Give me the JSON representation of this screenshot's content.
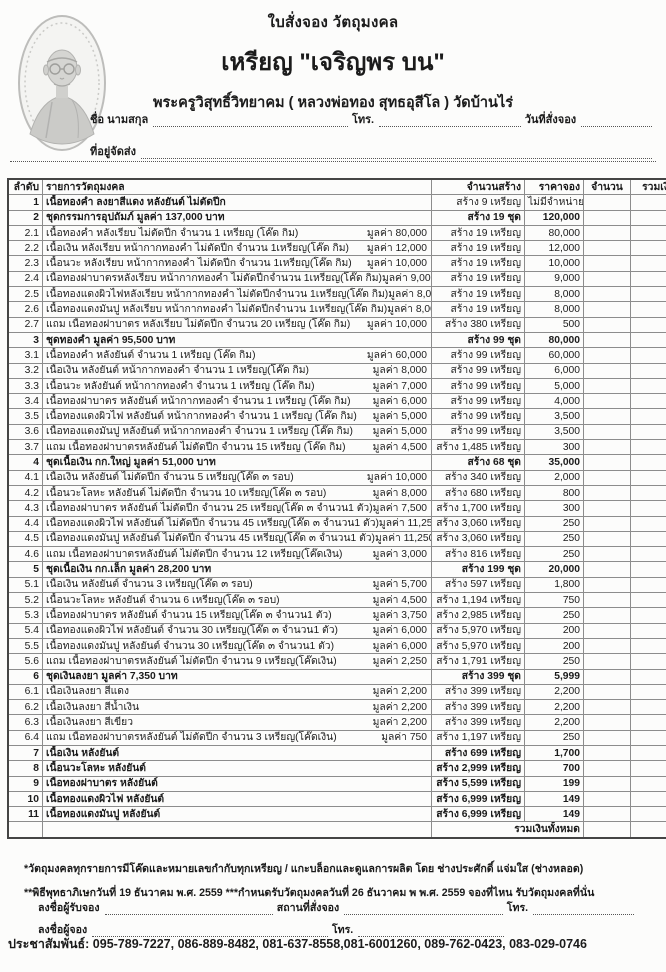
{
  "header": {
    "doc_title": "ใบสั่งจอง วัตถุมงคล",
    "coin_title": "เหรียญ \"เจริญพร บน\"",
    "subtitle": "พระครูวิสุทธิ์วิทยาคม ( หลวงพ่อทอง สุทธอุสีโล ) วัดบ้านไร่",
    "medallion": "monk-portrait-medallion"
  },
  "form": {
    "name_label": "ชื่อ นามสกุล",
    "phone_label": "โทร.",
    "date_label": "วันที่สั่งจอง",
    "address_label": "ที่อยู่จัดส่ง"
  },
  "table": {
    "headers": {
      "no": "ลำดับ",
      "item": "รายการวัตถุมงคล",
      "made": "จำนวนสร้าง",
      "price": "ราคาจอง",
      "qty": "จำนวน",
      "total": "รวมเงิน"
    },
    "total_label": "รวมเงินทั้งหมด",
    "rows": [
      {
        "n": "1",
        "t": "เนื้อทองคำ ลงยาสีแดง หลังยันต์ ไม่ตัดปีก",
        "v": "",
        "m": "สร้าง 9 เหรียญ",
        "p": "ไม่มีจำหน่าย",
        "b": 1
      },
      {
        "n": "2",
        "t": "ชุดกรรมการอุปถัมภ์ มูลค่า 137,000 บาท",
        "v": "",
        "m": "สร้าง 19 ชุด",
        "p": "120,000",
        "b": 2
      },
      {
        "n": "2.1",
        "t": "เนื้อทองคำ หลังเรียบ ไม่ตัดปีก จำนวน 1 เหรียญ (โค๊ด กิม)",
        "v": "มูลค่า 80,000",
        "m": "สร้าง 19 เหรียญ",
        "p": "80,000",
        "b": 0
      },
      {
        "n": "2.2",
        "t": "เนื้อเงิน หลังเรียบ หน้ากากทองคำ ไม่ตัดปีก จำนวน 1เหรียญ(โค๊ด กิม)",
        "v": "มูลค่า 12,000",
        "m": "สร้าง 19 เหรียญ",
        "p": "12,000",
        "b": 0
      },
      {
        "n": "2.3",
        "t": "เนื้อนวะ หลังเรียบ หน้ากากทองคำ ไม่ตัดปีก จำนวน 1เหรียญ(โค๊ด กิม)",
        "v": "มูลค่า 10,000",
        "m": "สร้าง 19 เหรียญ",
        "p": "10,000",
        "b": 0
      },
      {
        "n": "2.4",
        "t": "เนื้อทองฝาบาตรหลังเรียบ หน้ากากทองคำ ไม่ตัดปีกจำนวน 1เหรียญ(โค๊ด กิม)",
        "v": "มูลค่า 9,000",
        "m": "สร้าง 19 เหรียญ",
        "p": "9,000",
        "b": 0
      },
      {
        "n": "2.5",
        "t": "เนื้อทองแดงผิวไฟหลังเรียบ หน้ากากทองคำ ไม่ตัดปีกจำนวน 1เหรียญ(โค๊ด กิม)",
        "v": "มูลค่า 8,000",
        "m": "สร้าง 19 เหรียญ",
        "p": "8,000",
        "b": 0
      },
      {
        "n": "2.6",
        "t": "เนื้อทองแดงมันปู หลังเรียบ หน้ากากทองคำ ไม่ตัดปีกจำนวน 1เหรียญ(โค๊ด กิม)",
        "v": "มูลค่า 8,000",
        "m": "สร้าง 19 เหรียญ",
        "p": "8,000",
        "b": 0
      },
      {
        "n": "2.7",
        "t": "แถม เนื้อทองฝาบาตร หลังเรียบ ไม่ตัดปีก จำนวน 20 เหรียญ (โค๊ด กิม)",
        "v": "มูลค่า 10,000",
        "m": "สร้าง 380 เหรียญ",
        "p": "500",
        "b": 0
      },
      {
        "n": "3",
        "t": "ชุดทองคำ มูลค่า 95,500 บาท",
        "v": "",
        "m": "สร้าง 99 ชุด",
        "p": "80,000",
        "b": 2
      },
      {
        "n": "3.1",
        "t": "เนื้อทองคำ หลังยันต์ จำนวน 1 เหรียญ (โค๊ด กิม)",
        "v": "มูลค่า 60,000",
        "m": "สร้าง 99 เหรียญ",
        "p": "60,000",
        "b": 0
      },
      {
        "n": "3.2",
        "t": "เนื้อเงิน หลังยันต์ หน้ากากทองคำ จำนวน 1 เหรียญ(โค๊ด กิม)",
        "v": "มูลค่า 8,000",
        "m": "สร้าง 99 เหรียญ",
        "p": "6,000",
        "b": 0
      },
      {
        "n": "3.3",
        "t": "เนื้อนวะ หลังยันต์ หน้ากากทองคำ จำนวน 1 เหรียญ (โค๊ด กิม)",
        "v": "มูลค่า 7,000",
        "m": "สร้าง 99 เหรียญ",
        "p": "5,000",
        "b": 0
      },
      {
        "n": "3.4",
        "t": "เนื้อทองฝาบาตร หลังยันต์ หน้ากากทองคำ จำนวน 1 เหรียญ (โค๊ด กิม)",
        "v": "มูลค่า 6,000",
        "m": "สร้าง 99 เหรียญ",
        "p": "4,000",
        "b": 0
      },
      {
        "n": "3.5",
        "t": "เนื้อทองแดงผิวไฟ หลังยันต์ หน้ากากทองคำ จำนวน 1 เหรียญ (โค๊ด กิม)",
        "v": "มูลค่า 5,000",
        "m": "สร้าง 99 เหรียญ",
        "p": "3,500",
        "b": 0
      },
      {
        "n": "3.6",
        "t": "เนื้อทองแดงมันปู หลังยันต์ หน้ากากทองคำ จำนวน 1 เหรียญ (โค๊ด กิม)",
        "v": "มูลค่า 5,000",
        "m": "สร้าง 99 เหรียญ",
        "p": "3,500",
        "b": 0
      },
      {
        "n": "3.7",
        "t": "แถม เนื้อทองฝาบาตรหลังยันต์ ไม่ตัดปีก จำนวน 15 เหรียญ (โค๊ด กิม)",
        "v": "มูลค่า 4,500",
        "m": "สร้าง 1,485 เหรียญ",
        "p": "300",
        "b": 0
      },
      {
        "n": "4",
        "t": "ชุดเนื้อเงิน กก.ใหญ่ มูลค่า 51,000 บาท",
        "v": "",
        "m": "สร้าง 68 ชุด",
        "p": "35,000",
        "b": 2
      },
      {
        "n": "4.1",
        "t": "เนื้อเงิน หลังยันต์ ไม่ตัดปีก จำนวน 5 เหรียญ(โค๊ด ๓ รอบ)",
        "v": "มูลค่า 10,000",
        "m": "สร้าง 340 เหรียญ",
        "p": "2,000",
        "b": 0
      },
      {
        "n": "4.2",
        "t": "เนื้อนวะโลหะ หลังยันต์ ไม่ตัดปีก จำนวน 10 เหรียญ(โค๊ด ๓ รอบ)",
        "v": "มูลค่า 8,000",
        "m": "สร้าง 680 เหรียญ",
        "p": "800",
        "b": 0
      },
      {
        "n": "4.3",
        "t": "เนื้อทองฝาบาตร หลังยันต์ ไม่ตัดปีก จำนวน 25 เหรียญ(โค๊ด ๓ จำนวน1 ตัว)",
        "v": "มูลค่า 7,500",
        "m": "สร้าง 1,700 เหรียญ",
        "p": "300",
        "b": 0
      },
      {
        "n": "4.4",
        "t": "เนื้อทองแดงผิวไฟ หลังยันต์ ไม่ตัดปีก จำนวน 45 เหรียญ(โค๊ด ๓ จำนวน1 ตัว)",
        "v": "มูลค่า 11,250",
        "m": "สร้าง 3,060 เหรียญ",
        "p": "250",
        "b": 0
      },
      {
        "n": "4.5",
        "t": "เนื้อทองแดงมันปู หลังยันต์ ไม่ตัดปีก จำนวน 45 เหรียญ(โค๊ด ๓ จำนวน1 ตัว)",
        "v": "มูลค่า 11,250",
        "m": "สร้าง 3,060 เหรียญ",
        "p": "250",
        "b": 0
      },
      {
        "n": "4.6",
        "t": "แถม เนื้อทองฝาบาตรหลังยันต์ ไม่ตัดปีก จำนวน 12 เหรียญ(โค๊ดเงิน)",
        "v": "มูลค่า 3,000",
        "m": "สร้าง 816 เหรียญ",
        "p": "250",
        "b": 0
      },
      {
        "n": "5",
        "t": "ชุดเนื้อเงิน กก.เล็ก มูลค่า 28,200 บาท",
        "v": "",
        "m": "สร้าง 199 ชุด",
        "p": "20,000",
        "b": 2
      },
      {
        "n": "5.1",
        "t": "เนื้อเงิน หลังยันต์ จำนวน 3 เหรียญ(โค๊ด ๓ รอบ)",
        "v": "มูลค่า 5,700",
        "m": "สร้าง 597 เหรียญ",
        "p": "1,800",
        "b": 0
      },
      {
        "n": "5.2",
        "t": "เนื้อนวะโลหะ หลังยันต์ จำนวน 6 เหรียญ(โค๊ด ๓ รอบ)",
        "v": "มูลค่า 4,500",
        "m": "สร้าง 1,194 เหรียญ",
        "p": "750",
        "b": 0
      },
      {
        "n": "5.3",
        "t": "เนื้อทองฝาบาตร หลังยันต์ จำนวน 15 เหรียญ(โค๊ด ๓ จำนวน1 ตัว)",
        "v": "มูลค่า 3,750",
        "m": "สร้าง 2,985 เหรียญ",
        "p": "250",
        "b": 0
      },
      {
        "n": "5.4",
        "t": "เนื้อทองแดงผิวไฟ หลังยันต์ จำนวน 30 เหรียญ(โค๊ด ๓ จำนวน1 ตัว)",
        "v": "มูลค่า 6,000",
        "m": "สร้าง 5,970 เหรียญ",
        "p": "200",
        "b": 0
      },
      {
        "n": "5.5",
        "t": "เนื้อทองแดงมันปู หลังยันต์ จำนวน 30 เหรียญ(โค๊ด ๓ จำนวน1 ตัว)",
        "v": "มูลค่า 6,000",
        "m": "สร้าง 5,970 เหรียญ",
        "p": "200",
        "b": 0
      },
      {
        "n": "5.6",
        "t": "แถม เนื้อทองฝาบาตรหลังยันต์ ไม่ตัดปีก จำนวน 9 เหรียญ(โค๊ดเงิน)",
        "v": "มูลค่า 2,250",
        "m": "สร้าง 1,791 เหรียญ",
        "p": "250",
        "b": 0
      },
      {
        "n": "6",
        "t": "ชุดเงินลงยา มูลค่า 7,350 บาท",
        "v": "",
        "m": "สร้าง 399 ชุด",
        "p": "5,999",
        "b": 2
      },
      {
        "n": "6.1",
        "t": "เนื้อเงินลงยา สีแดง",
        "v": "มูลค่า 2,200",
        "m": "สร้าง 399 เหรียญ",
        "p": "2,200",
        "b": 0
      },
      {
        "n": "6.2",
        "t": "เนื้อเงินลงยา สีน้ำเงิน",
        "v": "มูลค่า 2,200",
        "m": "สร้าง 399 เหรียญ",
        "p": "2,200",
        "b": 0
      },
      {
        "n": "6.3",
        "t": "เนื้อเงินลงยา สีเขียว",
        "v": "มูลค่า 2,200",
        "m": "สร้าง 399 เหรียญ",
        "p": "2,200",
        "b": 0
      },
      {
        "n": "6.4",
        "t": "แถม เนื้อทองฝาบาตรหลังยันต์ ไม่ตัดปีก จำนวน 3 เหรียญ(โค๊ดเงิน)",
        "v": "มูลค่า 750",
        "m": "สร้าง 1,197 เหรียญ",
        "p": "250",
        "b": 0
      },
      {
        "n": "7",
        "t": "เนื้อเงิน หลังยันต์",
        "v": "",
        "m": "สร้าง 699 เหรียญ",
        "p": "1,700",
        "b": 2
      },
      {
        "n": "8",
        "t": "เนื้อนวะโลหะ หลังยันต์",
        "v": "",
        "m": "สร้าง 2,999 เหรียญ",
        "p": "700",
        "b": 2
      },
      {
        "n": "9",
        "t": "เนื้อทองฝาบาตร หลังยันต์",
        "v": "",
        "m": "สร้าง 5,599 เหรียญ",
        "p": "199",
        "b": 2
      },
      {
        "n": "10",
        "t": "เนื้อทองแดงผิวไฟ หลังยันต์",
        "v": "",
        "m": "สร้าง 6,999 เหรียญ",
        "p": "149",
        "b": 2
      },
      {
        "n": "11",
        "t": "เนื้อทองแดงมันปู หลังยันต์",
        "v": "",
        "m": "สร้าง 6,999 เหรียญ",
        "p": "149",
        "b": 2
      }
    ]
  },
  "notes": {
    "note1": "*วัตถุมงคลทุกรายการมีโค๊ดและหมายเลขกำกับทุกเหรียญ / แกะบล็อกและดูแลการผลิต โดย ช่างประศักดิ์  แจ่มใส (ช่างหลอด)",
    "note2": "**พิธีพุทธาภิเษกวันที่ 19 ธันวาคม พ.ศ. 2559 ***กำหนดรับวัตถุมงคลวันที่ 26 ธันวาคม พ พ.ศ. 2559 จองที่ไหน รับวัตถุมงคลที่นั่น"
  },
  "signature": {
    "receiver_label": "ลงชื่อผู้รับจอง",
    "place_label": "สถานที่สั่งจอง",
    "phone_label": "โทร.",
    "orderer_label": "ลงชื่อผู้จอง",
    "phone2_label": "โทร."
  },
  "contact": "ประชาสัมพันธ์: 095-789-7227, 086-889-8482, 081-637-8558,081-6001260, 089-762-0423, 083-029-0746"
}
